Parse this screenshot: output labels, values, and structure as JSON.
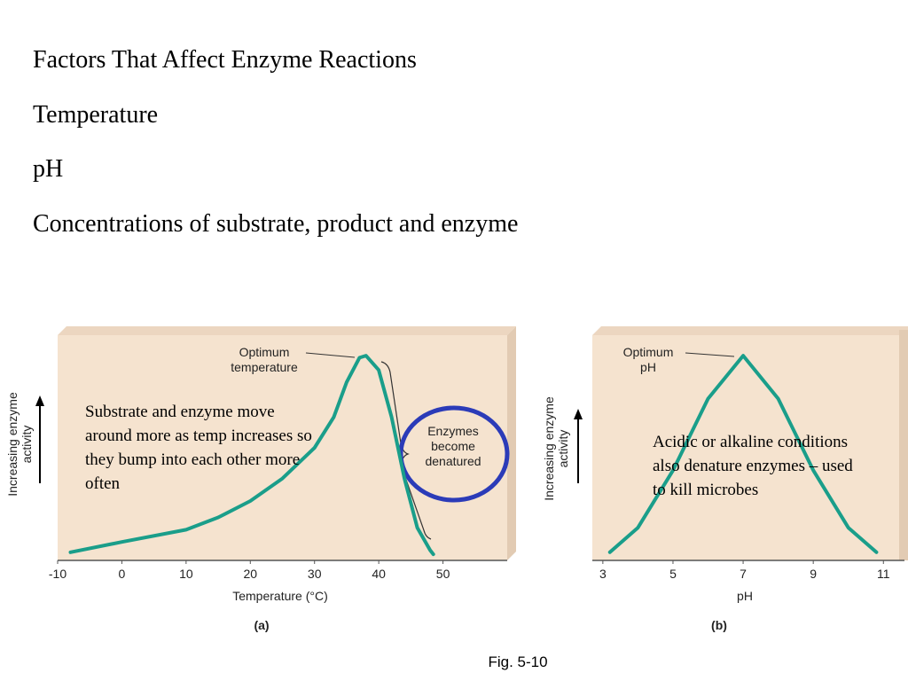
{
  "slide": {
    "lines": [
      "Factors That Affect Enzyme Reactions",
      "Temperature",
      "pH",
      "Concentrations of substrate, product and enzyme"
    ],
    "notes": [
      "Substrate and enzyme move around more as temp increases so they bump into each other more often",
      "Acidic or alkaline conditions also denature enzymes – used to kill microbes"
    ],
    "caption": "Fig. 5-10"
  },
  "chart_data": [
    {
      "type": "line",
      "panel_label": "(a)",
      "x_label": "Temperature (°C)",
      "y_label": "Increasing enzyme activity",
      "annotations": [
        "Optimum temperature",
        "Enzymes become denatured"
      ],
      "x": [
        -8,
        0,
        10,
        15,
        20,
        25,
        30,
        33,
        35,
        37,
        38,
        40,
        42,
        44,
        46,
        48,
        48.5
      ],
      "values": [
        4,
        9,
        15,
        21,
        29,
        40,
        55,
        70,
        87,
        99,
        100,
        93,
        70,
        40,
        16,
        5,
        3
      ],
      "color": "#1a9e8a",
      "xlim": [
        -10,
        60
      ],
      "ylim": [
        0,
        110
      ],
      "xticks": [
        -10,
        0,
        10,
        20,
        30,
        40,
        50
      ]
    },
    {
      "type": "line",
      "panel_label": "(b)",
      "x_label": "pH",
      "y_label": "Increasing enzyme activity",
      "annotations": [
        "Optimum pH"
      ],
      "x": [
        3.2,
        4,
        5,
        6,
        7,
        8,
        9,
        10,
        10.8
      ],
      "values": [
        4,
        16,
        44,
        79,
        100,
        79,
        44,
        16,
        4
      ],
      "color": "#1a9e8a",
      "xlim": [
        2.7,
        11.6
      ],
      "ylim": [
        0,
        110
      ],
      "xticks": [
        3,
        5,
        7,
        9,
        11
      ]
    }
  ]
}
